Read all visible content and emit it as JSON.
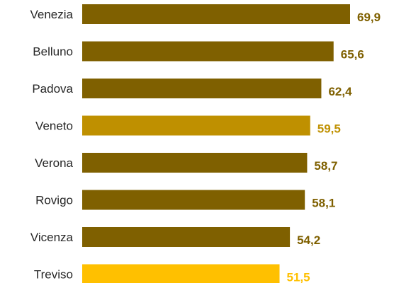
{
  "chart_data": {
    "type": "bar",
    "orientation": "horizontal",
    "categories": [
      "Venezia",
      "Belluno",
      "Padova",
      "Veneto",
      "Verona",
      "Rovigo",
      "Vicenza",
      "Treviso"
    ],
    "values": [
      69.9,
      65.6,
      62.4,
      59.5,
      58.7,
      58.1,
      54.2,
      51.5
    ],
    "value_labels": [
      "69,9",
      "65,6",
      "62,4",
      "59,5",
      "58,7",
      "58,1",
      "54,2",
      "51,5"
    ],
    "bar_colors": [
      "#7f6000",
      "#7f6000",
      "#7f6000",
      "#bf9000",
      "#7f6000",
      "#7f6000",
      "#7f6000",
      "#ffc000"
    ],
    "label_colors": [
      "#7f6000",
      "#7f6000",
      "#7f6000",
      "#bf9000",
      "#7f6000",
      "#7f6000",
      "#7f6000",
      "#ffc000"
    ],
    "xlim": [
      0,
      69.9
    ],
    "grid": false,
    "legend": "none"
  }
}
